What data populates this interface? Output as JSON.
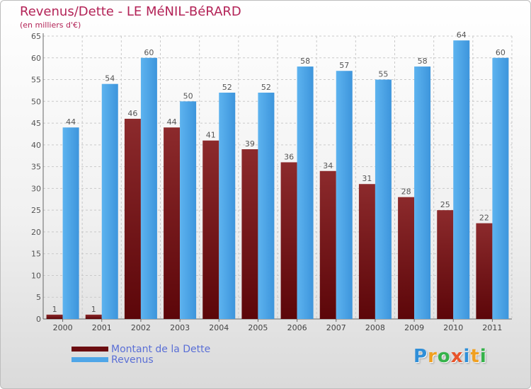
{
  "header": {
    "title": "Revenus/Dette - LE MéNIL-BéRARD",
    "subtitle": "(en milliers d'€)"
  },
  "legend": {
    "items": [
      {
        "label": "Montant de la Dette",
        "color": "#6b0d10"
      },
      {
        "label": "Revenus",
        "color": "#4fa6e8"
      }
    ]
  },
  "logo": {
    "text": "Proxiti",
    "letters": [
      {
        "ch": "P",
        "color": "#2f8fd8"
      },
      {
        "ch": "r",
        "color": "#f0a021"
      },
      {
        "ch": "o",
        "color": "#35b24a"
      },
      {
        "ch": "x",
        "color": "#e8532a"
      },
      {
        "ch": "i",
        "color": "#2f8fd8"
      },
      {
        "ch": "t",
        "color": "#f0a021"
      },
      {
        "ch": "i",
        "color": "#35b24a"
      }
    ]
  },
  "chart_data": {
    "type": "bar",
    "title": "Revenus/Dette - LE MéNIL-BéRARD",
    "subtitle": "(en milliers d'€)",
    "categories": [
      "2000",
      "2001",
      "2002",
      "2003",
      "2004",
      "2005",
      "2006",
      "2007",
      "2008",
      "2009",
      "2010",
      "2011"
    ],
    "series": [
      {
        "name": "Montant de la Dette",
        "color": "#6b0d10",
        "values": [
          1,
          1,
          46,
          44,
          41,
          39,
          36,
          34,
          31,
          28,
          25,
          22
        ]
      },
      {
        "name": "Revenus",
        "color": "#4fa6e8",
        "values": [
          44,
          54,
          60,
          50,
          52,
          52,
          58,
          57,
          55,
          58,
          64,
          60
        ]
      }
    ],
    "ylim": [
      0,
      65
    ],
    "yticks": [
      0,
      5,
      10,
      15,
      20,
      25,
      30,
      35,
      40,
      45,
      50,
      55,
      60,
      65
    ],
    "grid": true,
    "legend_position": "bottom-left"
  }
}
